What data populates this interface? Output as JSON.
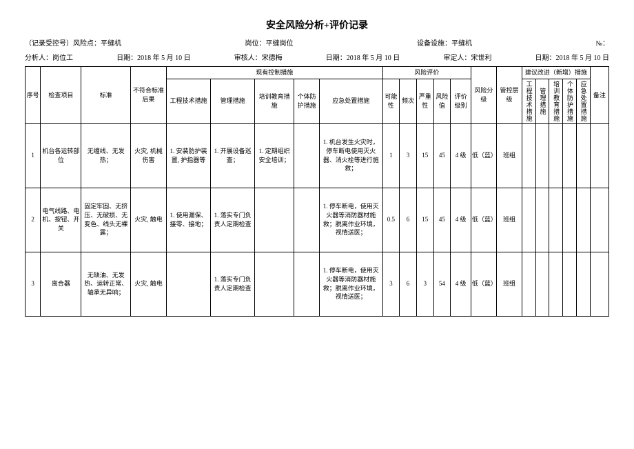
{
  "title": "安全风险分析+评价记录",
  "meta1": {
    "record_label": "（记录受控号）风险点：",
    "risk_point": "平缝机",
    "post_label": "岗位：",
    "post": "平缝岗位",
    "equip_label": "设备设施：",
    "equip": "平缝机",
    "no_label": "№："
  },
  "meta2": {
    "analyst_label": "分析人：",
    "analyst": "岗位工",
    "date1_label": "日期：",
    "date1": "2018 年 5 月 10 日",
    "reviewer_label": "审核人：",
    "reviewer": "宋德梅",
    "date2_label": "日期：",
    "date2": "2018 年 5 月 10 日",
    "approver_label": "审定人：",
    "approver": "宋世利",
    "date3_label": "日期：",
    "date3": "2018 年 5 月 10 日"
  },
  "headers": {
    "seq": "序号",
    "item": "检查项目",
    "std": "标准",
    "noncon": "不符合标准后果",
    "ctrl_group": "现有控制措施",
    "ctrl_eng": "工程技术措施",
    "ctrl_mgmt": "管理措施",
    "ctrl_train": "培训教育措施",
    "ctrl_ppe": "个体防护措施",
    "ctrl_emg": "应急处置措施",
    "eval_group": "风险评价",
    "likely": "可能性",
    "freq": "频次",
    "sev": "严重性",
    "riskval": "风险值",
    "evalgrade": "评价级别",
    "risklevel": "风险分级",
    "mgmtlevel": "管控层级",
    "improve_group": "建议改进（新增）措施",
    "imp_eng": "工程技术措施",
    "imp_mgmt": "管理措施",
    "imp_train": "培训教育措施",
    "imp_ppe": "个体防护措施",
    "imp_emg": "应急处置措施",
    "remark": "备注"
  },
  "rows": [
    {
      "seq": "1",
      "item": "机台各运转部位",
      "std": "无缠线、无发热；",
      "noncon": "火灾, 机械伤害",
      "ctrl_eng": "1. 安装防护装置, 护指器等",
      "ctrl_mgmt": "1. 开展设备巡查；",
      "ctrl_train": "1. 定期组织安全培训；",
      "ctrl_ppe": "",
      "ctrl_emg": "1. 机台发生火灾时，停车断电使用灭火器、消火栓等进行施救；",
      "likely": "1",
      "freq": "3",
      "sev": "15",
      "riskval": "45",
      "evalgrade": "4 级",
      "risklevel": "低（蓝）",
      "mgmtlevel": "班组"
    },
    {
      "seq": "2",
      "item": "电气线路、电机、按钮、开关",
      "std": "固定牢固、无挤压、无破损、无变色、线头无裸露；",
      "noncon": "火灾, 触电",
      "ctrl_eng": "1. 使用漏保、接零、接地；",
      "ctrl_mgmt": "1. 落实专门负责人定期检查",
      "ctrl_train": "",
      "ctrl_ppe": "",
      "ctrl_emg": "1. 停车断电，使用灭火器等消防器材施救；脱离作业环境，视情送医；",
      "likely": "0.5",
      "freq": "6",
      "sev": "15",
      "riskval": "45",
      "evalgrade": "4 级",
      "risklevel": "低（蓝）",
      "mgmtlevel": "班组"
    },
    {
      "seq": "3",
      "item": "离合器",
      "std": "无缺油、无发热、运转正常、轴承无异响；",
      "noncon": "火灾, 触电",
      "ctrl_eng": "",
      "ctrl_mgmt": "1. 落实专门负责人定期检查",
      "ctrl_train": "",
      "ctrl_ppe": "",
      "ctrl_emg": "1. 停车断电，使用灭火器等消防器材施救；脱离作业环境，视情送医；",
      "likely": "3",
      "freq": "6",
      "sev": "3",
      "riskval": "54",
      "evalgrade": "4 级",
      "risklevel": "低（蓝）",
      "mgmtlevel": "班组"
    }
  ]
}
